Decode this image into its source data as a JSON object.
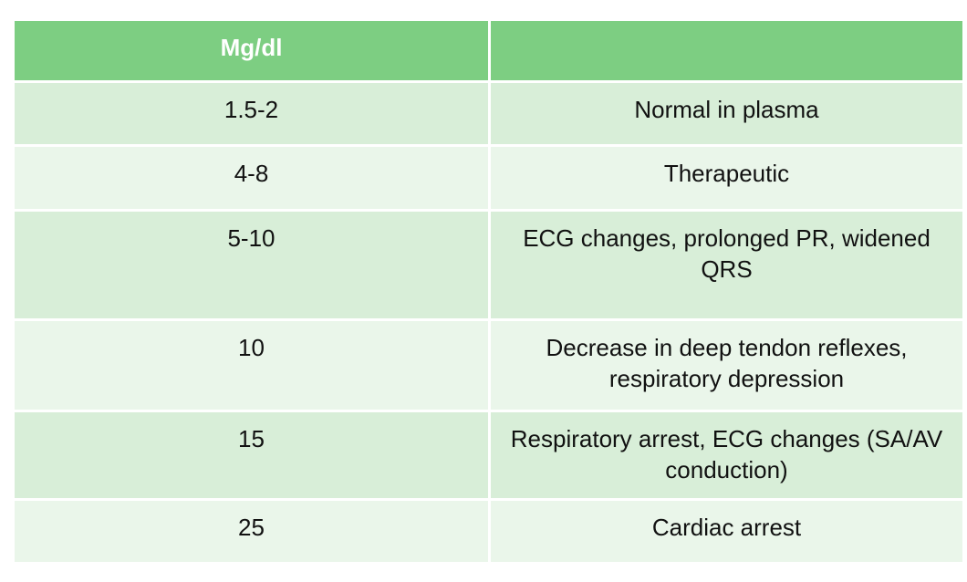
{
  "table": {
    "header": [
      "Mg/dl"
    ],
    "rows": [
      [
        "1.5-2",
        "Normal  in plasma"
      ],
      [
        "4-8",
        "Therapeutic"
      ],
      [
        "5-10",
        "ECG changes, prolonged PR, widened QRS"
      ],
      [
        "10",
        "Decrease in deep tendon reflexes, respiratory depression"
      ],
      [
        "15",
        "Respiratory arrest, ECG changes (SA/AV conduction)"
      ],
      [
        "25",
        "Cardiac arrest"
      ]
    ]
  }
}
